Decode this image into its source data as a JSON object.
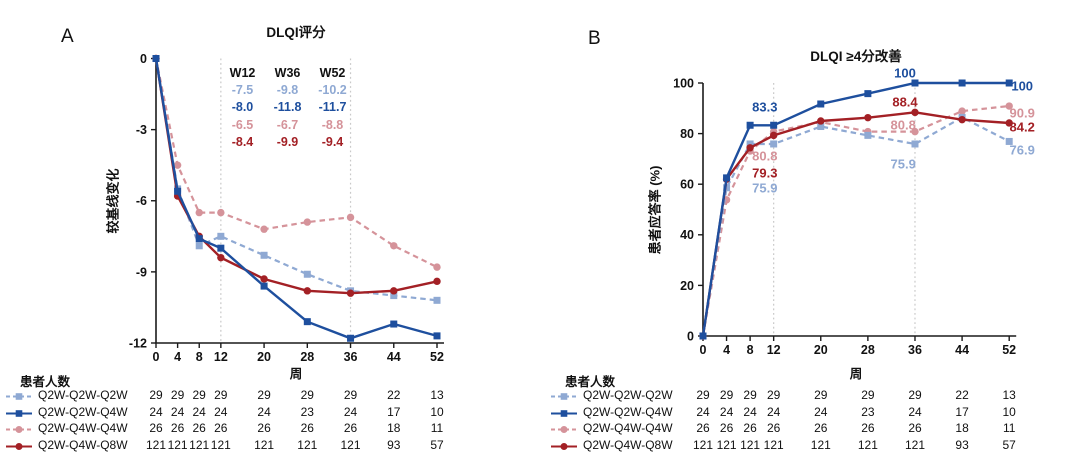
{
  "colors": {
    "light_blue": "#8FA9D3",
    "dark_blue": "#1E4F9E",
    "pink": "#D5939A",
    "dark_red": "#A32025",
    "axis": "#1a1a1a",
    "gridline": "#c9c9c9"
  },
  "patient_table": {
    "header": "患者人数",
    "rows": [
      {
        "label": "Q2W-Q2W-Q2W",
        "counts": [
          "29",
          "29",
          "29",
          "29",
          "29",
          "29",
          "29",
          "22",
          "13"
        ]
      },
      {
        "label": "Q2W-Q2W-Q4W",
        "counts": [
          "24",
          "24",
          "24",
          "24",
          "24",
          "23",
          "24",
          "17",
          "10"
        ]
      },
      {
        "label": "Q2W-Q4W-Q4W",
        "counts": [
          "26",
          "26",
          "26",
          "26",
          "26",
          "26",
          "26",
          "18",
          "11"
        ]
      },
      {
        "label": "Q2W-Q4W-Q8W",
        "counts": [
          "121",
          "121",
          "121",
          "121",
          "121",
          "121",
          "121",
          "93",
          "57"
        ]
      }
    ]
  },
  "chart_data": [
    {
      "type": "line",
      "panel_letter": "A",
      "title": "DLQI评分",
      "xlabel": "周",
      "ylabel": "较基线变化",
      "x": [
        0,
        4,
        8,
        12,
        20,
        28,
        36,
        44,
        52
      ],
      "xlim": [
        0,
        52
      ],
      "ylim": [
        -12,
        0
      ],
      "yticks": [
        0,
        -3,
        -6,
        -9,
        -12
      ],
      "vlines_x": [
        12,
        36
      ],
      "legend_position": "bottom-left",
      "grid": "off",
      "series": [
        {
          "name": "Q2W-Q2W-Q2W",
          "color": "light_blue",
          "style": "dashed",
          "marker": "square",
          "values": [
            0,
            -5.5,
            -7.9,
            -7.5,
            -8.3,
            -9.1,
            -9.8,
            -10.0,
            -10.2
          ]
        },
        {
          "name": "Q2W-Q2W-Q4W",
          "color": "dark_blue",
          "style": "solid",
          "marker": "square",
          "values": [
            0,
            -5.6,
            -7.6,
            -8.0,
            -9.6,
            -11.1,
            -11.8,
            -11.2,
            -11.7
          ]
        },
        {
          "name": "Q2W-Q4W-Q4W",
          "color": "pink",
          "style": "dashed",
          "marker": "circle",
          "values": [
            0,
            -4.5,
            -6.5,
            -6.5,
            -7.2,
            -6.9,
            -6.7,
            -7.9,
            -8.8
          ]
        },
        {
          "name": "Q2W-Q4W-Q8W",
          "color": "dark_red",
          "style": "solid",
          "marker": "circle",
          "values": [
            0,
            -5.8,
            -7.5,
            -8.4,
            -9.3,
            -9.8,
            -9.9,
            -9.8,
            -9.4
          ]
        }
      ],
      "summary_table": {
        "headers": [
          "W12",
          "W36",
          "W52"
        ],
        "rows": [
          {
            "color": "light_blue",
            "values": [
              "-7.5",
              "-9.8",
              "-10.2"
            ]
          },
          {
            "color": "dark_blue",
            "values": [
              "-8.0",
              "-11.8",
              "-11.7"
            ]
          },
          {
            "color": "pink",
            "values": [
              "-6.5",
              "-6.7",
              "-8.8"
            ]
          },
          {
            "color": "dark_red",
            "values": [
              "-8.4",
              "-9.9",
              "-9.4"
            ]
          }
        ]
      }
    },
    {
      "type": "line",
      "panel_letter": "B",
      "title": "DLQI ≥4分改善",
      "xlabel": "周",
      "ylabel": "患者应答率 (%)",
      "x": [
        0,
        4,
        8,
        12,
        20,
        28,
        36,
        44,
        52
      ],
      "xlim": [
        0,
        52
      ],
      "ylim": [
        0,
        100
      ],
      "yticks": [
        0,
        20,
        40,
        60,
        80,
        100
      ],
      "vlines_x": [
        12,
        36
      ],
      "legend_position": "bottom-left",
      "grid": "off",
      "series": [
        {
          "name": "Q2W-Q2W-Q2W",
          "color": "light_blue",
          "style": "dashed",
          "marker": "square",
          "values": [
            0,
            58.6,
            75.9,
            75.9,
            82.8,
            79.3,
            75.9,
            86.4,
            76.9
          ]
        },
        {
          "name": "Q2W-Q2W-Q4W",
          "color": "dark_blue",
          "style": "solid",
          "marker": "square",
          "values": [
            0,
            62.5,
            83.3,
            83.3,
            91.7,
            95.8,
            100,
            100,
            100
          ]
        },
        {
          "name": "Q2W-Q4W-Q4W",
          "color": "pink",
          "style": "dashed",
          "marker": "circle",
          "values": [
            0,
            53.8,
            73.1,
            80.8,
            84.6,
            80.8,
            80.8,
            88.9,
            90.9
          ]
        },
        {
          "name": "Q2W-Q4W-Q8W",
          "color": "dark_red",
          "style": "solid",
          "marker": "circle",
          "values": [
            0,
            62.0,
            74.4,
            79.3,
            85.0,
            86.3,
            88.4,
            85.5,
            84.2
          ]
        }
      ],
      "annotations": [
        {
          "text": "83.3",
          "color": "dark_blue",
          "week": 10.5,
          "pct": 90.5
        },
        {
          "text": "80.8",
          "color": "pink",
          "week": 10.5,
          "pct": 71.1
        },
        {
          "text": "79.3",
          "color": "dark_red",
          "week": 10.5,
          "pct": 64.4
        },
        {
          "text": "75.9",
          "color": "light_blue",
          "week": 10.5,
          "pct": 58.5
        },
        {
          "text": "100",
          "color": "dark_blue",
          "week": 34.3,
          "pct": 104.0
        },
        {
          "text": "88.4",
          "color": "dark_red",
          "week": 34.3,
          "pct": 92.5
        },
        {
          "text": "80.8",
          "color": "pink",
          "week": 34.0,
          "pct": 83.4
        },
        {
          "text": "75.9",
          "color": "light_blue",
          "week": 34.0,
          "pct": 68.0
        },
        {
          "text": "100",
          "color": "dark_blue",
          "week": 54.2,
          "pct": 98.8
        },
        {
          "text": "90.9",
          "color": "pink",
          "week": 54.2,
          "pct": 88.1
        },
        {
          "text": "84.2",
          "color": "dark_red",
          "week": 54.2,
          "pct": 82.6
        },
        {
          "text": "76.9",
          "color": "light_blue",
          "week": 54.2,
          "pct": 73.5
        }
      ]
    }
  ]
}
